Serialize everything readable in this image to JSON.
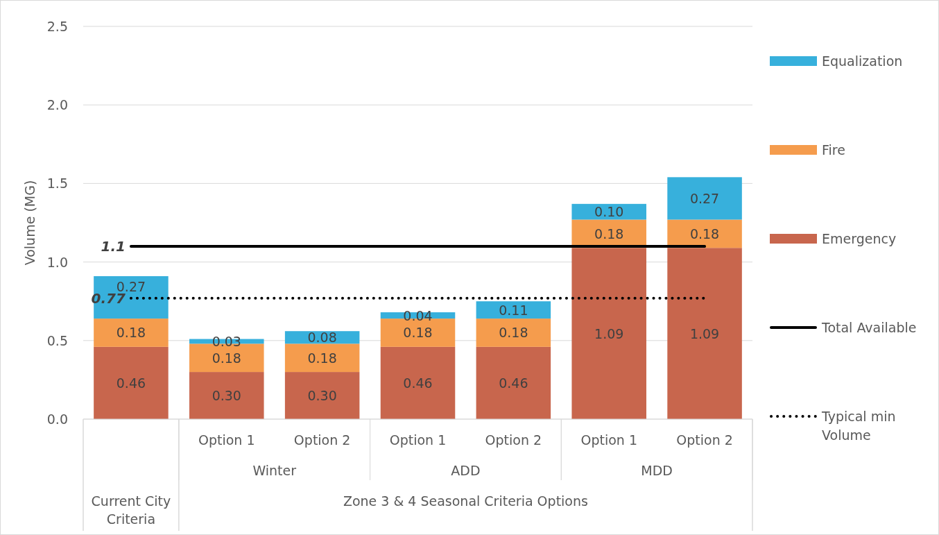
{
  "chart_data": {
    "type": "bar",
    "stacked": true,
    "ylabel": "Volume (MG)",
    "categories": [
      null,
      "Option 1",
      "Option 2",
      "Option 1",
      "Option 2",
      "Option 1",
      "Option 2"
    ],
    "series": [
      {
        "name": "Emergency",
        "color": "#c8664d",
        "values": [
          0.46,
          0.3,
          0.3,
          0.46,
          0.46,
          1.09,
          1.09
        ],
        "value_labels": [
          "0.46",
          "0.30",
          "0.30",
          "0.46",
          "0.46",
          "1.09",
          "1.09"
        ]
      },
      {
        "name": "Fire",
        "color": "#f59c4d",
        "values": [
          0.18,
          0.18,
          0.18,
          0.18,
          0.18,
          0.18,
          0.18
        ],
        "value_labels": [
          "0.18",
          "0.18",
          "0.18",
          "0.18",
          "0.18",
          "0.18",
          "0.18"
        ]
      },
      {
        "name": "Equalization",
        "color": "#37b0dc",
        "values": [
          0.27,
          0.03,
          0.08,
          0.04,
          0.11,
          0.1,
          0.27
        ],
        "value_labels": [
          "0.27",
          "0.03",
          "0.08",
          "0.04",
          "0.11",
          "0.10",
          "0.27"
        ]
      },
      {
        "name": "Total Available",
        "type": "line",
        "color": "#000000",
        "line_style": "solid",
        "values": [
          1.1,
          1.1,
          1.1,
          1.1,
          1.1,
          1.1,
          1.1
        ],
        "value_labels": [
          "1.1",
          null,
          null,
          null,
          null,
          null,
          null
        ]
      },
      {
        "name": "Typical min Volume",
        "type": "line",
        "color": "#000000",
        "line_style": "dotted",
        "values": [
          0.77,
          0.77,
          0.77,
          0.77,
          0.77,
          0.77,
          0.77
        ],
        "value_labels": [
          "0.77",
          null,
          null,
          null,
          null,
          null,
          null
        ]
      }
    ],
    "ylim": [
      0,
      2.5
    ],
    "yticks": [
      {
        "value": 0,
        "label": "0.0"
      },
      {
        "value": 0.5,
        "label": "0.5"
      },
      {
        "value": 1,
        "label": "1.0"
      },
      {
        "value": 1.5,
        "label": "1.5"
      },
      {
        "value": 2,
        "label": "2.0"
      },
      {
        "value": 2.5,
        "label": "2.5"
      }
    ],
    "grid": "y",
    "legend": "right",
    "annotations": [
      "Winter",
      "ADD",
      "MDD",
      "Current City Criteria",
      "Zone 3 & 4 Seasonal Criteria Options"
    ]
  }
}
